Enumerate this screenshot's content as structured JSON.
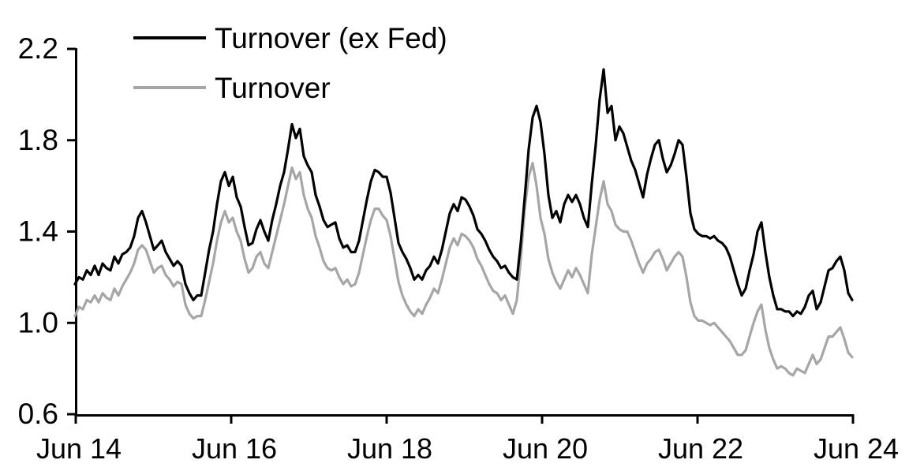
{
  "legend": {
    "items": [
      {
        "label": "Turnover (ex Fed)"
      },
      {
        "label": "Turnover"
      }
    ]
  },
  "colors": {
    "background": "#FFFFFF",
    "axis": "#000000",
    "series_black": "#000000",
    "series_gray": "#A6A6A6"
  },
  "chart_data": {
    "type": "line",
    "title": "",
    "grid": false,
    "legend_position": "inside-top-left",
    "x_axis": {
      "tick_labels": [
        "Jun 14",
        "Jun 16",
        "Jun 18",
        "Jun 20",
        "Jun 22",
        "Jun 24"
      ],
      "start_label": "Jun 14",
      "end_label": "Jun 24",
      "sampling": "uniform, values arrays span Jun 2014 to Jun 2024"
    },
    "y_axis": {
      "tick_labels": [
        "0.6",
        "1.0",
        "1.4",
        "1.8",
        "2.2"
      ],
      "ticks": [
        0.6,
        1.0,
        1.4,
        1.8,
        2.2
      ],
      "range": [
        0.6,
        2.2
      ]
    },
    "series": [
      {
        "name": "Turnover (ex Fed)",
        "color": "#000000",
        "stroke_width": 3.2,
        "values": [
          1.17,
          1.2,
          1.19,
          1.23,
          1.21,
          1.25,
          1.21,
          1.26,
          1.24,
          1.23,
          1.29,
          1.26,
          1.3,
          1.31,
          1.33,
          1.38,
          1.46,
          1.49,
          1.44,
          1.38,
          1.32,
          1.34,
          1.36,
          1.31,
          1.28,
          1.25,
          1.27,
          1.25,
          1.17,
          1.13,
          1.1,
          1.12,
          1.12,
          1.22,
          1.32,
          1.4,
          1.52,
          1.62,
          1.66,
          1.6,
          1.64,
          1.55,
          1.51,
          1.42,
          1.34,
          1.35,
          1.41,
          1.45,
          1.4,
          1.36,
          1.45,
          1.52,
          1.6,
          1.66,
          1.76,
          1.87,
          1.81,
          1.85,
          1.73,
          1.69,
          1.66,
          1.56,
          1.51,
          1.45,
          1.42,
          1.43,
          1.44,
          1.37,
          1.33,
          1.34,
          1.31,
          1.31,
          1.36,
          1.45,
          1.54,
          1.62,
          1.67,
          1.66,
          1.64,
          1.64,
          1.57,
          1.46,
          1.35,
          1.31,
          1.28,
          1.24,
          1.19,
          1.21,
          1.19,
          1.23,
          1.25,
          1.29,
          1.26,
          1.32,
          1.4,
          1.48,
          1.52,
          1.49,
          1.55,
          1.54,
          1.51,
          1.47,
          1.41,
          1.39,
          1.36,
          1.32,
          1.29,
          1.27,
          1.24,
          1.25,
          1.22,
          1.2,
          1.19,
          1.35,
          1.55,
          1.76,
          1.9,
          1.95,
          1.88,
          1.74,
          1.56,
          1.46,
          1.49,
          1.44,
          1.52,
          1.56,
          1.53,
          1.56,
          1.52,
          1.46,
          1.42,
          1.61,
          1.78,
          1.98,
          2.11,
          1.92,
          1.95,
          1.8,
          1.86,
          1.83,
          1.77,
          1.71,
          1.67,
          1.61,
          1.55,
          1.65,
          1.72,
          1.78,
          1.8,
          1.72,
          1.66,
          1.69,
          1.74,
          1.8,
          1.78,
          1.64,
          1.48,
          1.41,
          1.39,
          1.38,
          1.38,
          1.37,
          1.38,
          1.36,
          1.35,
          1.33,
          1.29,
          1.23,
          1.17,
          1.12,
          1.15,
          1.23,
          1.3,
          1.4,
          1.44,
          1.31,
          1.2,
          1.12,
          1.06,
          1.06,
          1.05,
          1.05,
          1.03,
          1.05,
          1.04,
          1.07,
          1.12,
          1.14,
          1.06,
          1.09,
          1.16,
          1.23,
          1.24,
          1.27,
          1.29,
          1.23,
          1.13,
          1.1
        ]
      },
      {
        "name": "Turnover",
        "color": "#A6A6A6",
        "stroke_width": 3.2,
        "values": [
          1.03,
          1.07,
          1.06,
          1.1,
          1.09,
          1.12,
          1.09,
          1.13,
          1.11,
          1.1,
          1.15,
          1.12,
          1.16,
          1.19,
          1.22,
          1.26,
          1.32,
          1.34,
          1.32,
          1.27,
          1.22,
          1.24,
          1.25,
          1.21,
          1.19,
          1.16,
          1.18,
          1.17,
          1.08,
          1.04,
          1.02,
          1.03,
          1.03,
          1.1,
          1.18,
          1.26,
          1.36,
          1.44,
          1.49,
          1.44,
          1.46,
          1.4,
          1.36,
          1.28,
          1.22,
          1.24,
          1.29,
          1.31,
          1.26,
          1.24,
          1.31,
          1.38,
          1.45,
          1.52,
          1.6,
          1.68,
          1.63,
          1.66,
          1.56,
          1.5,
          1.46,
          1.38,
          1.33,
          1.27,
          1.24,
          1.23,
          1.24,
          1.2,
          1.17,
          1.19,
          1.16,
          1.17,
          1.22,
          1.3,
          1.38,
          1.45,
          1.5,
          1.5,
          1.47,
          1.45,
          1.38,
          1.28,
          1.18,
          1.12,
          1.08,
          1.05,
          1.03,
          1.06,
          1.04,
          1.08,
          1.11,
          1.15,
          1.13,
          1.19,
          1.26,
          1.33,
          1.37,
          1.34,
          1.39,
          1.38,
          1.36,
          1.33,
          1.28,
          1.25,
          1.21,
          1.17,
          1.14,
          1.13,
          1.1,
          1.12,
          1.08,
          1.04,
          1.1,
          1.28,
          1.5,
          1.64,
          1.7,
          1.6,
          1.46,
          1.39,
          1.28,
          1.22,
          1.18,
          1.15,
          1.19,
          1.23,
          1.2,
          1.24,
          1.21,
          1.17,
          1.13,
          1.3,
          1.42,
          1.54,
          1.62,
          1.52,
          1.49,
          1.43,
          1.41,
          1.4,
          1.4,
          1.36,
          1.31,
          1.26,
          1.22,
          1.26,
          1.28,
          1.31,
          1.32,
          1.28,
          1.23,
          1.26,
          1.29,
          1.31,
          1.29,
          1.2,
          1.09,
          1.03,
          1.01,
          1.01,
          1.0,
          0.99,
          1.0,
          0.98,
          0.96,
          0.94,
          0.92,
          0.89,
          0.86,
          0.86,
          0.88,
          0.94,
          1.0,
          1.05,
          1.08,
          0.97,
          0.89,
          0.84,
          0.8,
          0.81,
          0.8,
          0.78,
          0.77,
          0.8,
          0.79,
          0.78,
          0.82,
          0.86,
          0.82,
          0.84,
          0.89,
          0.94,
          0.94,
          0.96,
          0.98,
          0.93,
          0.87,
          0.85
        ]
      }
    ]
  }
}
